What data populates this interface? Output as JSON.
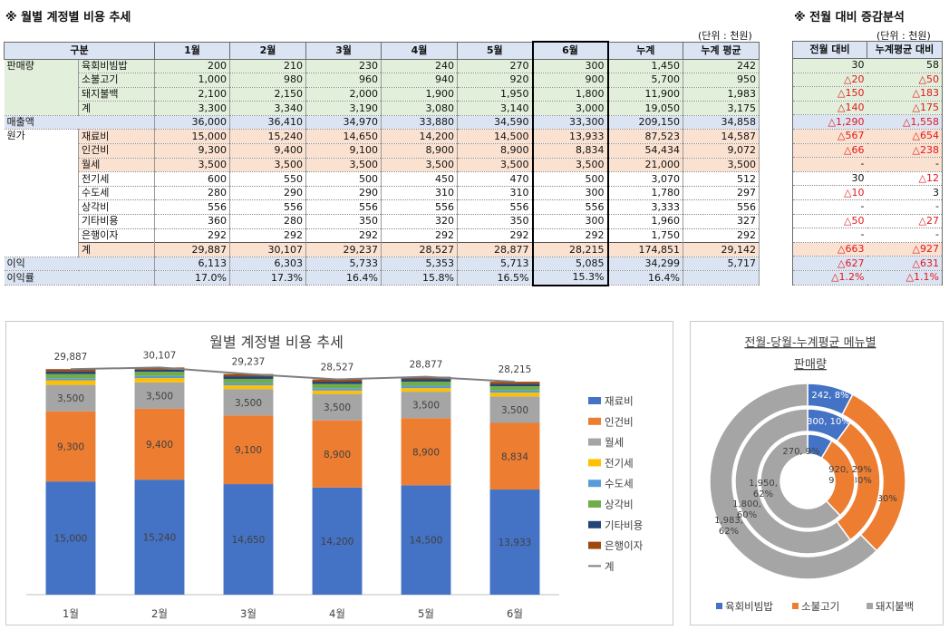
{
  "main_title": "※ 월별 계정별 비용 추세",
  "side_title": "※ 전월 대비 증감분석",
  "unit_label": "(단위 : 천원)",
  "columns": [
    "구분",
    "1월",
    "2월",
    "3월",
    "4월",
    "5월",
    "6월",
    "누계",
    "누계 평균"
  ],
  "side_columns": [
    "전월 대비",
    "누계평균 대비"
  ],
  "rows": [
    {
      "group": "판매량",
      "label": "육회비빔밥",
      "style": "green",
      "values": [
        "200",
        "210",
        "230",
        "240",
        "270",
        "300",
        "1,450",
        "242"
      ],
      "diff": [
        "30",
        "58"
      ]
    },
    {
      "group": "",
      "label": "소불고기",
      "style": "green",
      "values": [
        "1,000",
        "980",
        "960",
        "940",
        "920",
        "900",
        "5,700",
        "950"
      ],
      "diff": [
        "△20",
        "△50"
      ]
    },
    {
      "group": "",
      "label": "돼지불백",
      "style": "green",
      "values": [
        "2,100",
        "2,150",
        "2,000",
        "1,900",
        "1,950",
        "1,800",
        "11,900",
        "1,983"
      ],
      "diff": [
        "△150",
        "△183"
      ]
    },
    {
      "group": "",
      "label": "계",
      "style": "green",
      "values": [
        "3,300",
        "3,340",
        "3,190",
        "3,080",
        "3,140",
        "3,000",
        "19,050",
        "3,175"
      ],
      "diff": [
        "△140",
        "△175"
      ]
    },
    {
      "group": "매출액",
      "label": "",
      "style": "blue",
      "values": [
        "36,000",
        "36,410",
        "34,970",
        "33,880",
        "34,590",
        "33,300",
        "209,150",
        "34,858"
      ],
      "diff": [
        "△1,290",
        "△1,558"
      ]
    },
    {
      "group": "원가",
      "label": "재료비",
      "style": "peach",
      "values": [
        "15,000",
        "15,240",
        "14,650",
        "14,200",
        "14,500",
        "13,933",
        "87,523",
        "14,587"
      ],
      "diff": [
        "△567",
        "△654"
      ]
    },
    {
      "group": "",
      "label": "인건비",
      "style": "peach",
      "values": [
        "9,300",
        "9,400",
        "9,100",
        "8,900",
        "8,900",
        "8,834",
        "54,434",
        "9,072"
      ],
      "diff": [
        "△66",
        "△238"
      ]
    },
    {
      "group": "",
      "label": "월세",
      "style": "peach",
      "values": [
        "3,500",
        "3,500",
        "3,500",
        "3,500",
        "3,500",
        "3,500",
        "21,000",
        "3,500"
      ],
      "diff": [
        "-",
        "-"
      ]
    },
    {
      "group": "",
      "label": "전기세",
      "style": "white",
      "values": [
        "600",
        "550",
        "500",
        "450",
        "470",
        "500",
        "3,070",
        "512"
      ],
      "diff": [
        "30",
        "△12"
      ]
    },
    {
      "group": "",
      "label": "수도세",
      "style": "white",
      "values": [
        "280",
        "290",
        "290",
        "310",
        "310",
        "300",
        "1,780",
        "297"
      ],
      "diff": [
        "△10",
        "3"
      ]
    },
    {
      "group": "",
      "label": "상각비",
      "style": "white",
      "values": [
        "556",
        "556",
        "556",
        "556",
        "556",
        "556",
        "3,333",
        "556"
      ],
      "diff": [
        "-",
        "-"
      ]
    },
    {
      "group": "",
      "label": "기타비용",
      "style": "white",
      "values": [
        "360",
        "280",
        "350",
        "320",
        "350",
        "300",
        "1,960",
        "327"
      ],
      "diff": [
        "△50",
        "△27"
      ]
    },
    {
      "group": "",
      "label": "은행이자",
      "style": "white",
      "values": [
        "292",
        "292",
        "292",
        "292",
        "292",
        "292",
        "1,750",
        "292"
      ],
      "diff": [
        "-",
        "-"
      ]
    },
    {
      "group": "",
      "label": "계",
      "style": "peach",
      "values": [
        "29,887",
        "30,107",
        "29,237",
        "28,527",
        "28,877",
        "28,215",
        "174,851",
        "29,142"
      ],
      "diff": [
        "△663",
        "△927"
      ]
    },
    {
      "group": "이익",
      "label": "",
      "style": "blue",
      "values": [
        "6,113",
        "6,303",
        "5,733",
        "5,353",
        "5,713",
        "5,085",
        "34,299",
        "5,717"
      ],
      "diff": [
        "△627",
        "△631"
      ]
    },
    {
      "group": "이익률",
      "label": "",
      "style": "blue",
      "values": [
        "17.0%",
        "17.3%",
        "16.4%",
        "15.8%",
        "16.5%",
        "15.3%",
        "16.4%",
        ""
      ],
      "diff": [
        "△1.2%",
        "△1.1%"
      ]
    }
  ],
  "chart_data": [
    {
      "type": "bar",
      "stacked": true,
      "title": "월별 계정별 비용 추세",
      "categories": [
        "1월",
        "2월",
        "3월",
        "4월",
        "5월",
        "6월"
      ],
      "series": [
        {
          "name": "재료비",
          "color": "#4472c4",
          "values": [
            15000,
            15240,
            14650,
            14200,
            14500,
            13933
          ]
        },
        {
          "name": "인건비",
          "color": "#ed7d31",
          "values": [
            9300,
            9400,
            9100,
            8900,
            8900,
            8834
          ]
        },
        {
          "name": "월세",
          "color": "#a5a5a5",
          "values": [
            3500,
            3500,
            3500,
            3500,
            3500,
            3500
          ]
        },
        {
          "name": "전기세",
          "color": "#ffc000",
          "values": [
            600,
            550,
            500,
            450,
            470,
            500
          ]
        },
        {
          "name": "수도세",
          "color": "#5b9bd5",
          "values": [
            280,
            290,
            290,
            310,
            310,
            300
          ]
        },
        {
          "name": "상각비",
          "color": "#70ad47",
          "values": [
            556,
            556,
            556,
            556,
            556,
            556
          ]
        },
        {
          "name": "기타비용",
          "color": "#264478",
          "values": [
            360,
            280,
            350,
            320,
            350,
            300
          ]
        },
        {
          "name": "은행이자",
          "color": "#9e480e",
          "values": [
            292,
            292,
            292,
            292,
            292,
            292
          ]
        }
      ],
      "line": {
        "name": "계",
        "color": "#7f7f7f",
        "values": [
          29887,
          30107,
          29237,
          28527,
          28877,
          28215
        ]
      },
      "value_labels": [
        [
          "15,000",
          "15,240",
          "14,650",
          "14,200",
          "14,500",
          "13,933"
        ],
        [
          "9,300",
          "9,400",
          "9,100",
          "8,900",
          "8,900",
          "8,834"
        ],
        [
          "3,500",
          "3,500",
          "3,500",
          "3,500",
          "3,500",
          "3,500"
        ]
      ],
      "total_labels": [
        "29,887",
        "30,107",
        "29,237",
        "28,527",
        "28,877",
        "28,215"
      ],
      "legend_position": "right"
    },
    {
      "type": "pie",
      "variant": "doughnut",
      "title": "전월-당월-누계평균 메뉴별 판매량",
      "categories": [
        "육회비빔밥",
        "소불고기",
        "돼지불백"
      ],
      "colors": [
        "#4472c4",
        "#ed7d31",
        "#a5a5a5"
      ],
      "rings": [
        {
          "values": [
            242,
            950,
            1983
          ],
          "labels": [
            "242, 8%",
            "950, 30%",
            "1,983, 62%"
          ]
        },
        {
          "values": [
            300,
            900,
            1800
          ],
          "labels": [
            "300, 10%",
            "900, 30%",
            "1,800, 60%"
          ]
        },
        {
          "values": [
            270,
            920,
            1950
          ],
          "labels": [
            "270, 9%",
            "920, 29%",
            "1,950, 62%"
          ]
        }
      ],
      "legend_position": "bottom"
    }
  ]
}
